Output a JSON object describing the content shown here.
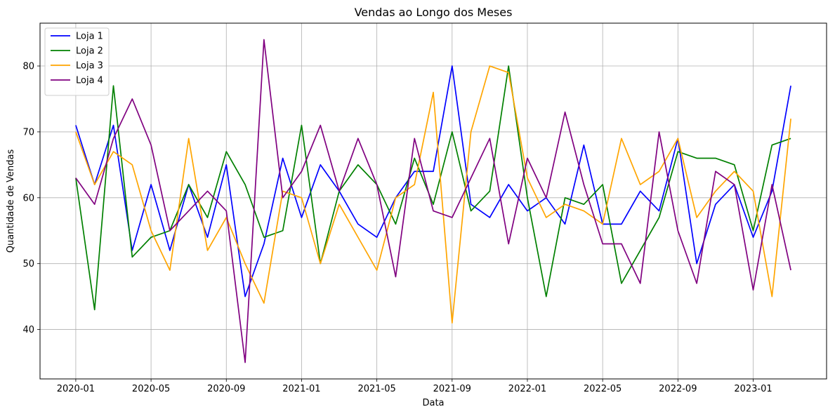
{
  "chart_data": {
    "type": "line",
    "title": "Vendas ao Longo dos Meses",
    "xlabel": "Data",
    "ylabel": "Quantidade de Vendas",
    "x": [
      "2020-01",
      "2020-02",
      "2020-03",
      "2020-04",
      "2020-05",
      "2020-06",
      "2020-07",
      "2020-08",
      "2020-09",
      "2020-10",
      "2020-11",
      "2020-12",
      "2021-01",
      "2021-02",
      "2021-03",
      "2021-04",
      "2021-05",
      "2021-06",
      "2021-07",
      "2021-08",
      "2021-09",
      "2021-10",
      "2021-11",
      "2021-12",
      "2022-01",
      "2022-02",
      "2022-03",
      "2022-04",
      "2022-05",
      "2022-06",
      "2022-07",
      "2022-08",
      "2022-09",
      "2022-10",
      "2022-11",
      "2022-12",
      "2023-01",
      "2023-02",
      "2023-03"
    ],
    "xticks": [
      "2020-01",
      "2020-05",
      "2020-09",
      "2021-01",
      "2021-05",
      "2021-09",
      "2022-01",
      "2022-05",
      "2022-09",
      "2023-01"
    ],
    "yticks": [
      40,
      50,
      60,
      70,
      80
    ],
    "ylim": [
      32.5,
      86.5
    ],
    "grid": true,
    "legend_position": "top-left",
    "series": [
      {
        "name": "Loja 1",
        "color": "#0000ff",
        "values": [
          71,
          62,
          71,
          52,
          62,
          52,
          62,
          54,
          65,
          45,
          53,
          66,
          57,
          65,
          61,
          56,
          54,
          60,
          64,
          64,
          80,
          59,
          57,
          62,
          58,
          60,
          56,
          68,
          56,
          56,
          61,
          58,
          69,
          50,
          59,
          62,
          54,
          61,
          77
        ]
      },
      {
        "name": "Loja 2",
        "color": "#008000",
        "values": [
          63,
          43,
          77,
          51,
          54,
          55,
          62,
          57,
          67,
          62,
          54,
          55,
          71,
          50,
          61,
          65,
          62,
          56,
          66,
          59,
          70,
          58,
          61,
          80,
          60,
          45,
          60,
          59,
          62,
          47,
          52,
          57,
          67,
          66,
          66,
          65,
          55,
          68,
          69
        ]
      },
      {
        "name": "Loja 3",
        "color": "#ffa500",
        "values": [
          70,
          62,
          67,
          65,
          55,
          49,
          69,
          52,
          57,
          50,
          44,
          61,
          60,
          50,
          59,
          54,
          49,
          60,
          62,
          76,
          41,
          70,
          80,
          79,
          63,
          57,
          59,
          58,
          56,
          69,
          62,
          64,
          69,
          57,
          61,
          64,
          61,
          45,
          72
        ]
      },
      {
        "name": "Loja 4",
        "color": "#800080",
        "values": [
          63,
          59,
          69,
          75,
          68,
          55,
          58,
          61,
          58,
          35,
          84,
          60,
          64,
          71,
          61,
          69,
          62,
          48,
          69,
          58,
          57,
          63,
          69,
          53,
          66,
          60,
          73,
          62,
          53,
          53,
          47,
          70,
          55,
          47,
          64,
          62,
          46,
          62,
          49
        ]
      }
    ]
  }
}
